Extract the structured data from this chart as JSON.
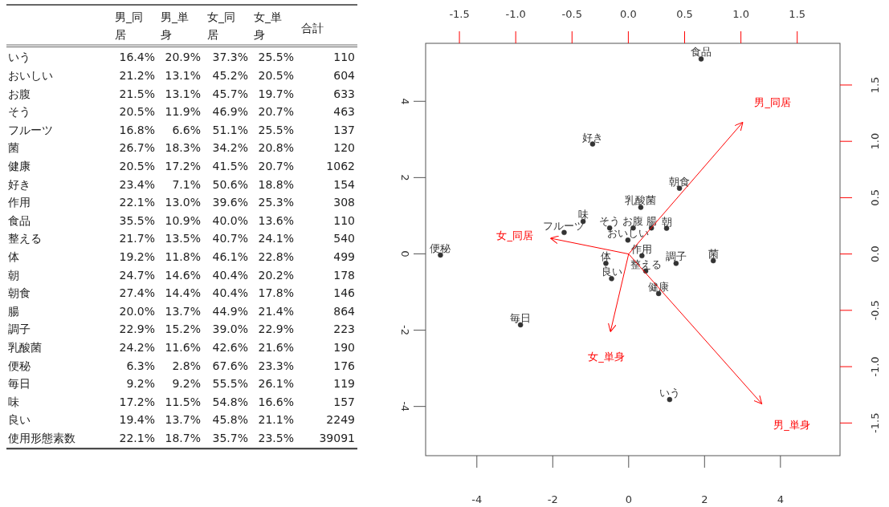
{
  "chart_data": [
    {
      "type": "other",
      "categories": [
        "男_同居",
        "男_単身",
        "女_同居",
        "女_単身",
        "合計"
      ],
      "y_categories": [
        "いう",
        "おいしい",
        "お腹",
        "そう",
        "フルーツ",
        "菌",
        "健康",
        "好き",
        "作用",
        "食品",
        "整える",
        "体",
        "朝",
        "朝食",
        "腸",
        "調子",
        "乳酸菌",
        "便秘",
        "毎日",
        "味",
        "良い",
        "使用形態素数"
      ],
      "cell_labels": [
        [
          "16.4%",
          "20.9%",
          "37.3%",
          "25.5%",
          "110"
        ],
        [
          "21.2%",
          "13.1%",
          "45.2%",
          "20.5%",
          "604"
        ],
        [
          "21.5%",
          "13.1%",
          "45.7%",
          "19.7%",
          "633"
        ],
        [
          "20.5%",
          "11.9%",
          "46.9%",
          "20.7%",
          "463"
        ],
        [
          "16.8%",
          "6.6%",
          "51.1%",
          "25.5%",
          "137"
        ],
        [
          "26.7%",
          "18.3%",
          "34.2%",
          "20.8%",
          "120"
        ],
        [
          "20.5%",
          "17.2%",
          "41.5%",
          "20.7%",
          "1062"
        ],
        [
          "23.4%",
          "7.1%",
          "50.6%",
          "18.8%",
          "154"
        ],
        [
          "22.1%",
          "13.0%",
          "39.6%",
          "25.3%",
          "308"
        ],
        [
          "35.5%",
          "10.9%",
          "40.0%",
          "13.6%",
          "110"
        ],
        [
          "21.7%",
          "13.5%",
          "40.7%",
          "24.1%",
          "540"
        ],
        [
          "19.2%",
          "11.8%",
          "46.1%",
          "22.8%",
          "499"
        ],
        [
          "24.7%",
          "14.6%",
          "40.4%",
          "20.2%",
          "178"
        ],
        [
          "27.4%",
          "14.4%",
          "40.4%",
          "17.8%",
          "146"
        ],
        [
          "20.0%",
          "13.7%",
          "44.9%",
          "21.4%",
          "864"
        ],
        [
          "22.9%",
          "15.2%",
          "39.0%",
          "22.9%",
          "223"
        ],
        [
          "24.2%",
          "11.6%",
          "42.6%",
          "21.6%",
          "190"
        ],
        [
          "6.3%",
          "2.8%",
          "67.6%",
          "23.3%",
          "176"
        ],
        [
          "9.2%",
          "9.2%",
          "55.5%",
          "26.1%",
          "119"
        ],
        [
          "17.2%",
          "11.5%",
          "54.8%",
          "16.6%",
          "157"
        ],
        [
          "19.4%",
          "13.7%",
          "45.8%",
          "21.1%",
          "2249"
        ],
        [
          "22.1%",
          "18.7%",
          "35.7%",
          "23.5%",
          "39091"
        ]
      ]
    },
    {
      "type": "scatter",
      "grid": false,
      "xlim": [
        -5.35,
        5.57
      ],
      "ylim": [
        -5.29,
        5.52
      ],
      "xticks": [
        -4,
        -2,
        0,
        2,
        4
      ],
      "yticks": [
        -4,
        -2,
        0,
        2,
        4
      ],
      "x2lim": [
        -1.8,
        1.88
      ],
      "x2ticks": [
        -1.5,
        {
          "value": -1,
          "label": "-1.0"
        },
        -0.5,
        {
          "value": 0,
          "label": "0.0"
        },
        0.5,
        {
          "value": 1,
          "label": "1.0"
        },
        1.5
      ],
      "y2lim": [
        -1.79,
        1.87
      ],
      "y2ticks": [
        -1.5,
        {
          "value": -1,
          "label": "-1.0"
        },
        -0.5,
        {
          "value": 0,
          "label": "0.0"
        },
        0.5,
        {
          "value": 1,
          "label": "1.0"
        },
        1.5
      ],
      "series": [
        {
          "type": "scatter",
          "color": "#333333",
          "marker": "circle",
          "x": [
            1.08,
            -0.02,
            0.12,
            -0.5,
            -1.7,
            2.23,
            0.79,
            -0.95,
            0.35,
            1.91,
            0.45,
            -0.6,
            1.0,
            1.34,
            0.6,
            1.25,
            0.32,
            -4.96,
            -2.85,
            -1.2,
            -0.45
          ],
          "values": [
            -3.82,
            0.36,
            0.68,
            0.68,
            0.56,
            -0.18,
            -1.04,
            2.88,
            -0.05,
            5.11,
            -0.45,
            -0.25,
            0.67,
            1.72,
            0.68,
            -0.25,
            1.22,
            -0.03,
            -1.86,
            0.85,
            -0.65
          ],
          "value_labels": [
            "いう",
            "おいしい",
            "お腹",
            "そう",
            "フルーツ",
            "菌",
            "健康",
            "好き",
            "作用",
            "食品",
            "整える",
            "体",
            "朝",
            "朝食",
            "腸",
            "調子",
            "乳酸菌",
            "便秘",
            "毎日",
            "味",
            "良い"
          ]
        },
        {
          "type": "line",
          "axis": "y2",
          "name": "男_同居",
          "color": "#ff0000",
          "x": [
            0,
            3.01
          ],
          "values": [
            0,
            1.17
          ]
        },
        {
          "type": "line",
          "axis": "y2",
          "name": "男_単身",
          "color": "#ff0000",
          "x": [
            0,
            3.51
          ],
          "values": [
            0,
            -1.33
          ]
        },
        {
          "type": "line",
          "axis": "y2",
          "name": "女_同居",
          "color": "#ff0000",
          "x": [
            0,
            -2.06
          ],
          "values": [
            0,
            0.14
          ]
        },
        {
          "type": "line",
          "axis": "y2",
          "name": "女_単身",
          "color": "#ff0000",
          "x": [
            0,
            -0.48
          ],
          "values": [
            0,
            -0.69
          ]
        }
      ]
    }
  ]
}
